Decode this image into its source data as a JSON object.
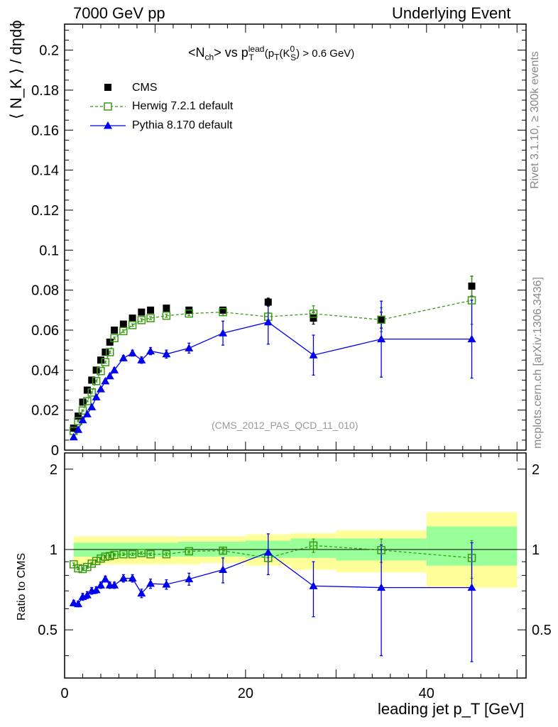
{
  "header": {
    "left": "7000 GeV pp",
    "right": "Underlying Event"
  },
  "side_labels": {
    "rivet": "Rivet 3.1.10, ≥ 300k events",
    "mcplots": "mcplots.cern.ch [arXiv:1306.3436]"
  },
  "plot_title": {
    "main_prefix": "<N",
    "main_sub": "ch",
    "main_mid": "> vs p",
    "main_sup": "lead",
    "main_sub2": "T",
    "cut_text": "(p",
    "cut_sub": "T",
    "cut_mid": "(K",
    "cut_sup": "0",
    "cut_sub2": "S",
    "cut_end": ") > 0.6 GeV)"
  },
  "analysis_id": "(CMS_2012_PAS_QCD_11_010)",
  "colors": {
    "cms": "#000000",
    "herwig": "#3a9a14",
    "pythia": "#0000ee",
    "band_yellow": "#ffff99",
    "band_green": "#99ff99"
  },
  "chart_data": [
    {
      "type": "scatter",
      "panel": "main",
      "ylabel": "⟨ N_K ⟩ / dηdϕ",
      "xlim": [
        0,
        51
      ],
      "ylim": [
        0,
        0.213
      ],
      "yticks": [
        "0",
        "0.02",
        "0.04",
        "0.06",
        "0.08",
        "0.1",
        "0.12",
        "0.14",
        "0.16",
        "0.18",
        "0.2"
      ],
      "legend_position": "top-left",
      "series": [
        {
          "name": "CMS",
          "marker": "filled-square",
          "x": [
            1.0,
            1.5,
            2.0,
            2.5,
            3.0,
            3.5,
            4.0,
            4.5,
            5.0,
            5.5,
            6.5,
            7.5,
            8.5,
            9.5,
            11.25,
            13.75,
            17.5,
            22.5,
            27.5,
            35.0,
            45.0
          ],
          "y": [
            0.011,
            0.017,
            0.024,
            0.03,
            0.035,
            0.04,
            0.045,
            0.049,
            0.054,
            0.06,
            0.063,
            0.066,
            0.069,
            0.07,
            0.071,
            0.07,
            0.07,
            0.074,
            0.066,
            0.065,
            0.082
          ],
          "yerr": [
            0.0005,
            0.0005,
            0.0005,
            0.0005,
            0.0005,
            0.0006,
            0.0006,
            0.0007,
            0.0008,
            0.0009,
            0.001,
            0.001,
            0.001,
            0.001,
            0.001,
            0.001,
            0.0015,
            0.002,
            0.003,
            0.004,
            0.005
          ]
        },
        {
          "name": "Herwig 7.2.1 default",
          "marker": "open-square",
          "line": "dashed",
          "x": [
            1.0,
            1.5,
            2.0,
            2.5,
            3.0,
            3.5,
            4.0,
            4.5,
            5.0,
            5.5,
            6.5,
            7.5,
            8.5,
            9.5,
            11.25,
            13.75,
            17.5,
            22.5,
            27.5,
            35.0,
            45.0
          ],
          "y": [
            0.0096,
            0.0145,
            0.0198,
            0.0245,
            0.0288,
            0.0345,
            0.0395,
            0.044,
            0.049,
            0.056,
            0.0595,
            0.0625,
            0.065,
            0.066,
            0.0672,
            0.0683,
            0.069,
            0.0667,
            0.0682,
            0.0652,
            0.0749
          ],
          "yerr": [
            0.0003,
            0.0003,
            0.0003,
            0.0003,
            0.0004,
            0.0004,
            0.0004,
            0.0005,
            0.0005,
            0.0005,
            0.0006,
            0.0006,
            0.0007,
            0.0007,
            0.0008,
            0.001,
            0.0015,
            0.002,
            0.004,
            0.006,
            0.012
          ]
        },
        {
          "name": "Pythia 8.170 default",
          "marker": "filled-triangle",
          "line": "solid",
          "x": [
            1.0,
            1.5,
            2.0,
            2.5,
            3.0,
            3.5,
            4.0,
            4.5,
            5.0,
            5.5,
            6.5,
            7.5,
            8.5,
            9.5,
            11.25,
            13.75,
            17.5,
            22.5,
            27.5,
            35.0,
            45.0
          ],
          "y": [
            0.0065,
            0.0102,
            0.015,
            0.018,
            0.0215,
            0.0265,
            0.0305,
            0.0345,
            0.037,
            0.04,
            0.046,
            0.0485,
            0.045,
            0.0495,
            0.048,
            0.051,
            0.0585,
            0.064,
            0.0475,
            0.0555,
            0.0555
          ],
          "yerr": [
            0.0004,
            0.0005,
            0.0006,
            0.0006,
            0.0007,
            0.0008,
            0.0009,
            0.001,
            0.001,
            0.0012,
            0.0013,
            0.0015,
            0.0016,
            0.0018,
            0.002,
            0.0025,
            0.006,
            0.011,
            0.01,
            0.019,
            0.0195
          ]
        }
      ]
    },
    {
      "type": "scatter",
      "panel": "ratio",
      "ylabel": "Ratio to CMS",
      "xlabel": "leading jet p_T [GeV]",
      "xlim": [
        0,
        51
      ],
      "ylim": [
        0.33,
        2.3
      ],
      "yticks": [
        "0.5",
        "1",
        "2"
      ],
      "xticks": [
        "0",
        "20",
        "40"
      ],
      "bands": [
        {
          "xlo": 1.0,
          "xhi": 10.0,
          "green": [
            0.94,
            1.06
          ],
          "yellow": [
            0.88,
            1.12
          ]
        },
        {
          "xlo": 10.0,
          "xhi": 12.5,
          "green": [
            0.94,
            1.06
          ],
          "yellow": [
            0.88,
            1.12
          ]
        },
        {
          "xlo": 12.5,
          "xhi": 15.0,
          "green": [
            0.94,
            1.07
          ],
          "yellow": [
            0.88,
            1.12
          ]
        },
        {
          "xlo": 15.0,
          "xhi": 20.0,
          "green": [
            0.94,
            1.07
          ],
          "yellow": [
            0.89,
            1.12
          ]
        },
        {
          "xlo": 20.0,
          "xhi": 25.0,
          "green": [
            0.93,
            1.08
          ],
          "yellow": [
            0.87,
            1.14
          ]
        },
        {
          "xlo": 25.0,
          "xhi": 30.0,
          "green": [
            0.93,
            1.1
          ],
          "yellow": [
            0.84,
            1.15
          ]
        },
        {
          "xlo": 30.0,
          "xhi": 40.0,
          "green": [
            0.91,
            1.1
          ],
          "yellow": [
            0.82,
            1.18
          ]
        },
        {
          "xlo": 40.0,
          "xhi": 50.0,
          "green": [
            0.87,
            1.22
          ],
          "yellow": [
            0.72,
            1.38
          ]
        }
      ],
      "series": [
        {
          "name": "Herwig 7.2.1 default",
          "x": [
            1.0,
            1.5,
            2.0,
            2.5,
            3.0,
            3.5,
            4.0,
            4.5,
            5.0,
            5.5,
            6.5,
            7.5,
            8.5,
            9.5,
            11.25,
            13.75,
            17.5,
            22.5,
            27.5,
            35.0,
            45.0
          ],
          "y": [
            0.88,
            0.85,
            0.845,
            0.86,
            0.885,
            0.905,
            0.925,
            0.94,
            0.945,
            0.955,
            0.96,
            0.96,
            0.97,
            0.96,
            0.96,
            0.985,
            0.99,
            0.93,
            1.035,
            0.995,
            0.93
          ],
          "yerr": [
            0.01,
            0.01,
            0.01,
            0.01,
            0.01,
            0.01,
            0.01,
            0.01,
            0.01,
            0.01,
            0.01,
            0.01,
            0.01,
            0.01,
            0.012,
            0.015,
            0.02,
            0.03,
            0.06,
            0.1,
            0.15
          ]
        },
        {
          "name": "Pythia 8.170 default",
          "x": [
            1.0,
            1.5,
            2.0,
            2.5,
            3.0,
            3.5,
            4.0,
            4.5,
            5.0,
            5.5,
            6.5,
            7.5,
            8.5,
            9.5,
            11.25,
            13.75,
            17.5,
            22.5,
            27.5,
            35.0,
            45.0
          ],
          "y": [
            0.63,
            0.625,
            0.665,
            0.675,
            0.7,
            0.705,
            0.735,
            0.775,
            0.735,
            0.735,
            0.78,
            0.78,
            0.685,
            0.745,
            0.74,
            0.775,
            0.84,
            0.975,
            0.73,
            0.72,
            0.72
          ],
          "yerr": [
            0.015,
            0.015,
            0.02,
            0.02,
            0.02,
            0.02,
            0.02,
            0.02,
            0.02,
            0.02,
            0.025,
            0.025,
            0.025,
            0.03,
            0.03,
            0.04,
            0.09,
            0.17,
            0.17,
            0.32,
            0.34
          ]
        }
      ]
    }
  ]
}
